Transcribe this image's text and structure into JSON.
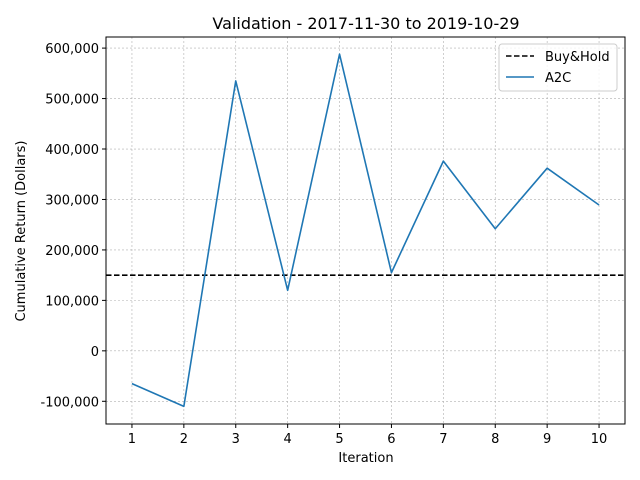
{
  "chart_data": {
    "type": "line",
    "title": "Validation - 2017-11-30 to 2019-10-29",
    "xlabel": "Iteration",
    "ylabel": "Cumulative Return (Dollars)",
    "x": [
      1,
      2,
      3,
      4,
      5,
      6,
      7,
      8,
      9,
      10
    ],
    "xlim": [
      0.5,
      10.5
    ],
    "ylim": [
      -145000,
      622000
    ],
    "yticks": [
      -100000,
      0,
      100000,
      200000,
      300000,
      400000,
      500000,
      600000
    ],
    "ytick_labels": [
      "-100,000",
      "0",
      "100,000",
      "200,000",
      "300,000",
      "400,000",
      "500,000",
      "600,000"
    ],
    "xtick_labels": [
      "1",
      "2",
      "3",
      "4",
      "5",
      "6",
      "7",
      "8",
      "9",
      "10"
    ],
    "grid": true,
    "legend_position": "top-right",
    "series": [
      {
        "name": "Buy&Hold",
        "style": "dashed",
        "color": "#000000",
        "values": [
          150000,
          150000,
          150000,
          150000,
          150000,
          150000,
          150000,
          150000,
          150000,
          150000
        ]
      },
      {
        "name": "A2C",
        "style": "solid",
        "color": "#1f77b4",
        "values": [
          -65000,
          -110000,
          535000,
          120000,
          588000,
          155000,
          376000,
          242000,
          362000,
          289000
        ]
      }
    ]
  }
}
